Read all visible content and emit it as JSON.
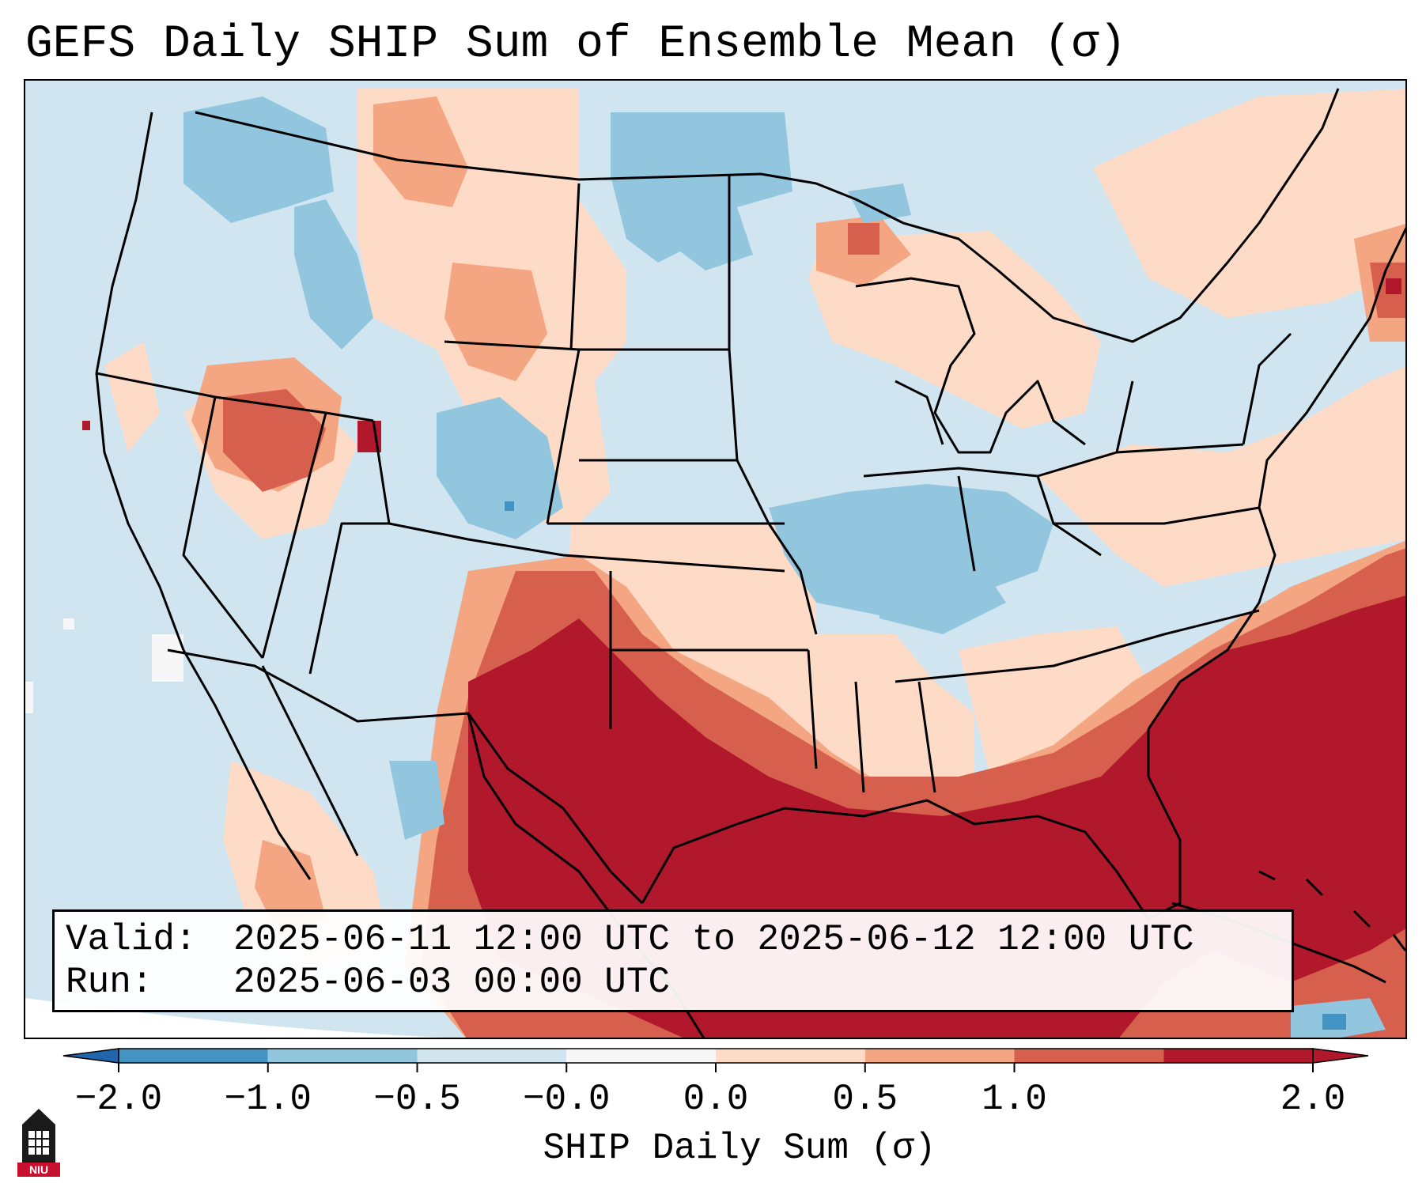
{
  "title": "GEFS Daily SHIP Sum of Ensemble Mean (σ)",
  "info": {
    "valid_label": "Valid:",
    "valid_value": "2025-06-11 12:00 UTC to 2025-06-12 12:00 UTC",
    "run_label": "Run:",
    "run_value": "2025-06-03 00:00 UTC"
  },
  "colorbar": {
    "label": "SHIP Daily Sum (σ)",
    "ticks": [
      "−2.0",
      "−1.0",
      "−0.5",
      "−0.0",
      "0.0",
      "0.5",
      "1.0",
      "2.0"
    ],
    "boundaries": [
      -2.0,
      -1.0,
      -0.5,
      0.0,
      0.0,
      0.5,
      1.0,
      2.0
    ],
    "colors": [
      "#4393c3",
      "#92c5de",
      "#d1e5f0",
      "#f7f7f7",
      "#fddbc7",
      "#f4a582",
      "#d6604d",
      "#b2182b"
    ],
    "under_color": "#2166ac",
    "over_color": "#b2182b"
  },
  "logo": {
    "text": "NIU",
    "color": "#c8102e"
  }
}
